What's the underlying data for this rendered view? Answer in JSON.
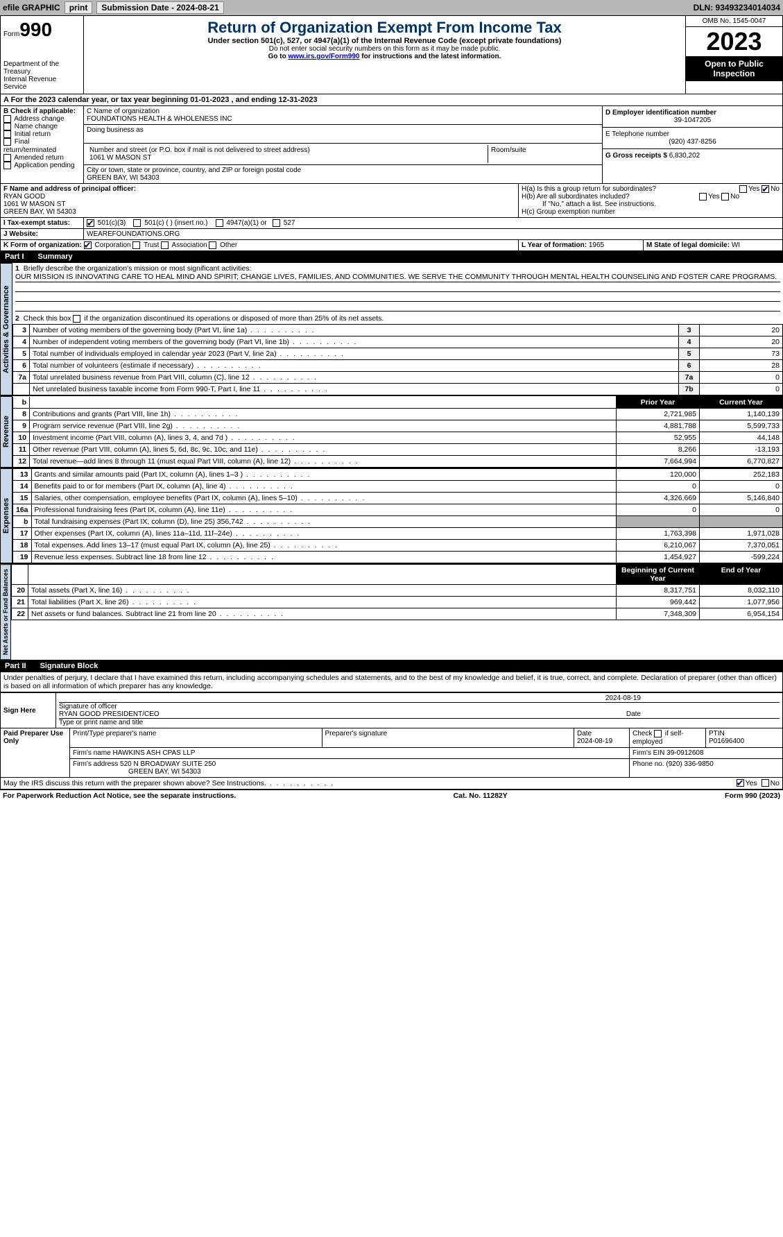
{
  "topbar": {
    "efile": "efile GRAPHIC",
    "print": "print",
    "sub_label": "Submission Date - 2024-08-21",
    "dln": "DLN: 93493234014034"
  },
  "header": {
    "form_label": "Form",
    "form_no": "990",
    "dept": "Department of the Treasury\nInternal Revenue Service",
    "title": "Return of Organization Exempt From Income Tax",
    "sub": "Under section 501(c), 527, or 4947(a)(1) of the Internal Revenue Code (except private foundations)",
    "note1": "Do not enter social security numbers on this form as it may be made public.",
    "note2": "Go to www.irs.gov/Form990 for instructions and the latest information.",
    "omb": "OMB No. 1545-0047",
    "year": "2023",
    "inspect": "Open to Public Inspection"
  },
  "line_a": "A For the 2023 calendar year, or tax year beginning 01-01-2023    , and ending 12-31-2023",
  "box_b": {
    "label": "B Check if applicable:",
    "items": [
      "Address change",
      "Name change",
      "Initial return",
      "Final return/terminated",
      "Amended return",
      "Application pending"
    ]
  },
  "box_c": {
    "name_label": "C Name of organization",
    "name": "FOUNDATIONS HEALTH & WHOLENESS INC",
    "dba_label": "Doing business as",
    "dba": "",
    "street_label": "Number and street (or P.O. box if mail is not delivered to street address)",
    "street": "1061 W MASON ST",
    "room_label": "Room/suite",
    "room": "",
    "city_label": "City or town, state or province, country, and ZIP or foreign postal code",
    "city": "GREEN BAY, WI  54303"
  },
  "box_d": {
    "label": "D Employer identification number",
    "val": "39-1047205"
  },
  "box_e": {
    "label": "E Telephone number",
    "val": "(920) 437-8256"
  },
  "box_g": {
    "label": "G Gross receipts $",
    "val": "6,830,202"
  },
  "box_f": {
    "label": "F  Name and address of principal officer:",
    "name": "RYAN GOOD",
    "street": "1061 W MASON ST",
    "city": "GREEN BAY, WI  54303"
  },
  "box_h": {
    "a": "H(a)  Is this a group return for subordinates?",
    "b": "H(b)  Are all subordinates included?",
    "bnote": "If \"No,\" attach a list. See instructions.",
    "c": "H(c)  Group exemption number  ",
    "yes": "Yes",
    "no": "No"
  },
  "box_i": {
    "label": "I  Tax-exempt status:",
    "opts": [
      "501(c)(3)",
      "501(c) (  ) (insert no.)",
      "4947(a)(1) or",
      "527"
    ]
  },
  "box_j": {
    "label": "J  Website: ",
    "val": "WEAREFOUNDATIONS.ORG"
  },
  "box_k": {
    "label": "K Form of organization:",
    "opts": [
      "Corporation",
      "Trust",
      "Association",
      "Other"
    ]
  },
  "box_l": {
    "label": "L Year of formation: ",
    "val": "1965"
  },
  "box_m": {
    "label": "M State of legal domicile: ",
    "val": "WI"
  },
  "part1": {
    "num": "Part I",
    "title": "Summary"
  },
  "gov": {
    "tab": "Activities & Governance",
    "l1": "Briefly describe the organization's mission or most significant activities:",
    "mission": "OUR MISSION IS INNOVATING CARE TO HEAL MIND AND SPIRIT; CHANGE LIVES, FAMILIES, AND COMMUNITIES. WE SERVE THE COMMUNITY THROUGH MENTAL HEALTH COUNSELING AND FOSTER CARE PROGRAMS.",
    "l2": "Check this box        if the organization discontinued its operations or disposed of more than 25% of its net assets.",
    "rows": [
      {
        "n": "3",
        "d": "Number of voting members of the governing body (Part VI, line 1a)",
        "b": "3",
        "v": "20"
      },
      {
        "n": "4",
        "d": "Number of independent voting members of the governing body (Part VI, line 1b)",
        "b": "4",
        "v": "20"
      },
      {
        "n": "5",
        "d": "Total number of individuals employed in calendar year 2023 (Part V, line 2a)",
        "b": "5",
        "v": "73"
      },
      {
        "n": "6",
        "d": "Total number of volunteers (estimate if necessary)",
        "b": "6",
        "v": "28"
      },
      {
        "n": "7a",
        "d": "Total unrelated business revenue from Part VIII, column (C), line 12",
        "b": "7a",
        "v": "0"
      },
      {
        "n": "",
        "d": "Net unrelated business taxable income from Form 990-T, Part I, line 11",
        "b": "7b",
        "v": "0"
      }
    ]
  },
  "rev": {
    "tab": "Revenue",
    "h1": "Prior Year",
    "h2": "Current Year",
    "rows": [
      {
        "n": "8",
        "d": "Contributions and grants (Part VIII, line 1h)",
        "p": "2,721,985",
        "c": "1,140,139"
      },
      {
        "n": "9",
        "d": "Program service revenue (Part VIII, line 2g)",
        "p": "4,881,788",
        "c": "5,599,733"
      },
      {
        "n": "10",
        "d": "Investment income (Part VIII, column (A), lines 3, 4, and 7d )",
        "p": "52,955",
        "c": "44,148"
      },
      {
        "n": "11",
        "d": "Other revenue (Part VIII, column (A), lines 5, 6d, 8c, 9c, 10c, and 11e)",
        "p": "8,266",
        "c": "-13,193"
      },
      {
        "n": "12",
        "d": "Total revenue—add lines 8 through 11 (must equal Part VIII, column (A), line 12)",
        "p": "7,664,994",
        "c": "6,770,827"
      }
    ]
  },
  "exp": {
    "tab": "Expenses",
    "rows": [
      {
        "n": "13",
        "d": "Grants and similar amounts paid (Part IX, column (A), lines 1–3 )",
        "p": "120,000",
        "c": "252,183"
      },
      {
        "n": "14",
        "d": "Benefits paid to or for members (Part IX, column (A), line 4)",
        "p": "0",
        "c": "0"
      },
      {
        "n": "15",
        "d": "Salaries, other compensation, employee benefits (Part IX, column (A), lines 5–10)",
        "p": "4,326,669",
        "c": "5,146,840"
      },
      {
        "n": "16a",
        "d": "Professional fundraising fees (Part IX, column (A), line 11e)",
        "p": "0",
        "c": "0"
      },
      {
        "n": "b",
        "d": "Total fundraising expenses (Part IX, column (D), line 25) 356,742",
        "p": "",
        "c": "",
        "shade": true
      },
      {
        "n": "17",
        "d": "Other expenses (Part IX, column (A), lines 11a–11d, 11f–24e)",
        "p": "1,763,398",
        "c": "1,971,028"
      },
      {
        "n": "18",
        "d": "Total expenses. Add lines 13–17 (must equal Part IX, column (A), line 25)",
        "p": "6,210,067",
        "c": "7,370,051"
      },
      {
        "n": "19",
        "d": "Revenue less expenses. Subtract line 18 from line 12",
        "p": "1,454,927",
        "c": "-599,224"
      }
    ]
  },
  "net": {
    "tab": "Net Assets or Fund Balances",
    "h1": "Beginning of Current Year",
    "h2": "End of Year",
    "rows": [
      {
        "n": "20",
        "d": "Total assets (Part X, line 16)",
        "p": "8,317,751",
        "c": "8,032,110"
      },
      {
        "n": "21",
        "d": "Total liabilities (Part X, line 26)",
        "p": "969,442",
        "c": "1,077,956"
      },
      {
        "n": "22",
        "d": "Net assets or fund balances. Subtract line 21 from line 20",
        "p": "7,348,309",
        "c": "6,954,154"
      }
    ]
  },
  "part2": {
    "num": "Part II",
    "title": "Signature Block"
  },
  "perjury": "Under penalties of perjury, I declare that I have examined this return, including accompanying schedules and statements, and to the best of my knowledge and belief, it is true, correct, and complete. Declaration of preparer (other than officer) is based on all information of which preparer has any knowledge.",
  "sign": {
    "here": "Sign Here",
    "sig_label": "Signature of officer",
    "name": "RYAN GOOD PRESIDENT/CEO",
    "name_label": "Type or print name and title",
    "date_label": "Date",
    "date": "2024-08-19"
  },
  "paid": {
    "label": "Paid Preparer Use Only",
    "prep_name_label": "Print/Type preparer's name",
    "prep_sig_label": "Preparer's signature",
    "date_label": "Date",
    "date": "2024-08-19",
    "check_label": "Check         if self-employed",
    "ptin_label": "PTIN",
    "ptin": "P01696400",
    "firm_name_label": "Firm's name   ",
    "firm_name": "HAWKINS ASH CPAS LLP",
    "firm_ein_label": "Firm's EIN  ",
    "firm_ein": "39-0912608",
    "firm_addr_label": "Firm's address ",
    "firm_addr1": "520 N BROADWAY SUITE 250",
    "firm_addr2": "GREEN BAY, WI  54303",
    "phone_label": "Phone no. ",
    "phone": "(920) 336-9850"
  },
  "discuss": "May the IRS discuss this return with the preparer shown above? See Instructions.",
  "footer": {
    "l": "For Paperwork Reduction Act Notice, see the separate instructions.",
    "c": "Cat. No. 11282Y",
    "r": "Form 990 (2023)"
  },
  "colors": {
    "header_blue": "#003366",
    "tab_bg": "#c8d8e8"
  }
}
